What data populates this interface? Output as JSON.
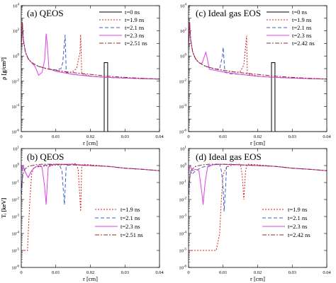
{
  "chart_data": [
    {
      "id": "a",
      "type": "line",
      "title": "(a) QEOS",
      "xlabel": "r [cm]",
      "ylabel": "ρ [g/cm³]",
      "xlim": [
        0,
        0.04
      ],
      "ylim": [
        1e-06,
        10000
      ],
      "y_scale": "log",
      "xticks": [
        "0",
        "0.01",
        "0.02",
        "0.03",
        "0.04"
      ],
      "yticks": [
        {
          "base": "10",
          "exp": "4"
        },
        {
          "base": "10",
          "exp": "2"
        },
        {
          "base": "10",
          "exp": "0"
        },
        {
          "base": "10",
          "exp": "-2"
        },
        {
          "base": "10",
          "exp": "-4"
        },
        {
          "base": "10",
          "exp": "-6"
        }
      ],
      "legend_position": "top-right",
      "series": [
        {
          "name": "t=0 ns",
          "color": "#000000",
          "dash": "solid",
          "x": [
            0,
            0.024,
            0.024,
            0.025,
            0.025,
            0.04
          ],
          "y": [
            1e-06,
            1e-06,
            0.3,
            0.3,
            1e-06,
            1e-06
          ]
        },
        {
          "name": "t=1.9 ns",
          "color": "#d62020",
          "dash": "dotted",
          "x": [
            0,
            0.0003,
            0.0006,
            0.0012,
            0.002,
            0.003,
            0.005,
            0.008,
            0.012,
            0.014,
            0.015,
            0.016,
            0.017,
            0.0172,
            0.0175,
            0.02,
            0.025,
            0.03,
            0.035,
            0.04
          ],
          "y": [
            5,
            500,
            20,
            2,
            0.6,
            0.3,
            0.15,
            0.09,
            0.06,
            0.05,
            0.06,
            0.1,
            2,
            50,
            0.04,
            0.025,
            0.02,
            0.018,
            0.016,
            0.015
          ]
        },
        {
          "name": "t=2.1 ns",
          "color": "#3a5fcd",
          "dash": "dashed",
          "x": [
            0,
            0.0003,
            0.0006,
            0.0012,
            0.002,
            0.003,
            0.005,
            0.008,
            0.01,
            0.0115,
            0.012,
            0.0125,
            0.0127,
            0.013,
            0.015,
            0.02,
            0.025,
            0.03,
            0.035,
            0.04
          ],
          "y": [
            5,
            500,
            20,
            2,
            0.6,
            0.3,
            0.15,
            0.09,
            0.08,
            0.1,
            0.3,
            10,
            50,
            0.05,
            0.035,
            0.025,
            0.02,
            0.018,
            0.016,
            0.015
          ]
        },
        {
          "name": "t=2.3 ns",
          "color": "#e040e0",
          "dash": "solid",
          "x": [
            0,
            0.0003,
            0.0006,
            0.0012,
            0.002,
            0.003,
            0.004,
            0.005,
            0.006,
            0.0068,
            0.0072,
            0.0075,
            0.008,
            0.01,
            0.015,
            0.02,
            0.025,
            0.03,
            0.035,
            0.04
          ],
          "y": [
            5,
            500,
            20,
            2,
            0.6,
            0.3,
            0.15,
            0.03,
            0.05,
            0.5,
            60,
            10,
            0.1,
            0.06,
            0.035,
            0.025,
            0.02,
            0.018,
            0.016,
            0.015
          ]
        },
        {
          "name": "t=2.51 ns",
          "color": "#8b2a2a",
          "dash": "dashdot",
          "x": [
            0,
            0.0003,
            0.0006,
            0.0012,
            0.002,
            0.003,
            0.005,
            0.008,
            0.012,
            0.016,
            0.02,
            0.025,
            0.03,
            0.035,
            0.04
          ],
          "y": [
            5,
            500,
            20,
            2,
            0.6,
            0.3,
            0.15,
            0.09,
            0.06,
            0.045,
            0.035,
            0.025,
            0.02,
            0.017,
            0.015
          ]
        }
      ]
    },
    {
      "id": "c",
      "type": "line",
      "title": "(c) Ideal gas EOS",
      "xlabel": "r [cm]",
      "ylabel": "ρ [g/cm³]",
      "xlim": [
        0,
        0.04
      ],
      "ylim": [
        1e-06,
        10000
      ],
      "y_scale": "log",
      "xticks": [
        "0",
        "0.01",
        "0.02",
        "0.03",
        "0.04"
      ],
      "yticks": [
        {
          "base": "10",
          "exp": "4"
        },
        {
          "base": "10",
          "exp": "2"
        },
        {
          "base": "10",
          "exp": "0"
        },
        {
          "base": "10",
          "exp": "-2"
        },
        {
          "base": "10",
          "exp": "-4"
        },
        {
          "base": "10",
          "exp": "-6"
        }
      ],
      "legend_position": "top-right",
      "series": [
        {
          "name": "t=0 ns",
          "color": "#000000",
          "dash": "solid",
          "x": [
            0,
            0.024,
            0.024,
            0.025,
            0.025,
            0.04
          ],
          "y": [
            1e-06,
            1e-06,
            0.3,
            0.3,
            1e-06,
            1e-06
          ]
        },
        {
          "name": "t=1.9 ns",
          "color": "#d62020",
          "dash": "dotted",
          "x": [
            0,
            0.0003,
            0.0006,
            0.0012,
            0.002,
            0.003,
            0.005,
            0.008,
            0.012,
            0.014,
            0.015,
            0.016,
            0.0165,
            0.0168,
            0.017,
            0.02,
            0.025,
            0.03,
            0.035,
            0.04
          ],
          "y": [
            5,
            500,
            20,
            2,
            0.6,
            0.3,
            0.15,
            0.09,
            0.06,
            0.05,
            0.06,
            0.2,
            5,
            40,
            0.04,
            0.025,
            0.02,
            0.018,
            0.016,
            0.015
          ]
        },
        {
          "name": "t=2.1 ns",
          "color": "#3a5fcd",
          "dash": "dashed",
          "x": [
            0,
            0.0003,
            0.0006,
            0.0012,
            0.002,
            0.003,
            0.005,
            0.008,
            0.009,
            0.0098,
            0.01,
            0.0102,
            0.0105,
            0.012,
            0.015,
            0.02,
            0.025,
            0.03,
            0.035,
            0.04
          ],
          "y": [
            5,
            500,
            20,
            2,
            0.6,
            0.3,
            0.15,
            0.09,
            0.1,
            1,
            5,
            1,
            0.05,
            0.04,
            0.035,
            0.025,
            0.02,
            0.018,
            0.016,
            0.015
          ]
        },
        {
          "name": "t=2.3 ns",
          "color": "#e040e0",
          "dash": "solid",
          "x": [
            0,
            0.0003,
            0.0006,
            0.0012,
            0.002,
            0.003,
            0.0035,
            0.004,
            0.0045,
            0.005,
            0.0055,
            0.006,
            0.008,
            0.01,
            0.015,
            0.02,
            0.025,
            0.03,
            0.035,
            0.04
          ],
          "y": [
            5,
            500,
            20,
            2,
            0.6,
            0.3,
            0.25,
            0.3,
            0.8,
            2,
            0.5,
            0.09,
            0.07,
            0.055,
            0.035,
            0.025,
            0.02,
            0.018,
            0.016,
            0.015
          ]
        },
        {
          "name": "t=2.42 ns",
          "color": "#8b2a2a",
          "dash": "dashdot",
          "x": [
            0,
            0.0003,
            0.0006,
            0.0012,
            0.002,
            0.003,
            0.005,
            0.008,
            0.012,
            0.016,
            0.02,
            0.025,
            0.03,
            0.035,
            0.04
          ],
          "y": [
            5,
            500,
            20,
            2,
            0.6,
            0.3,
            0.15,
            0.09,
            0.06,
            0.045,
            0.035,
            0.025,
            0.02,
            0.017,
            0.015
          ]
        }
      ]
    },
    {
      "id": "b",
      "type": "line",
      "title": "(b) QEOS",
      "xlabel": "r [cm]",
      "ylabel": "Tᵢ [keV]",
      "xlim": [
        0,
        0.04
      ],
      "ylim": [
        1e-06,
        10
      ],
      "y_scale": "log",
      "xticks": [
        "0",
        "0.01",
        "0.02",
        "0.03",
        "0.04"
      ],
      "yticks": [
        {
          "base": "10",
          "exp": "1"
        },
        {
          "base": "10",
          "exp": "0"
        },
        {
          "base": "10",
          "exp": "-1"
        },
        {
          "base": "10",
          "exp": "-2"
        },
        {
          "base": "10",
          "exp": "-3"
        },
        {
          "base": "10",
          "exp": "-4"
        },
        {
          "base": "10",
          "exp": "-5"
        },
        {
          "base": "10",
          "exp": "-6"
        }
      ],
      "legend_position": "center-right",
      "series": [
        {
          "name": "t=1.9 ns",
          "color": "#d62020",
          "dash": "dotted",
          "x": [
            0,
            0.001,
            0.0018,
            0.002,
            0.0025,
            0.003,
            0.0035,
            0.004,
            0.006,
            0.008,
            0.012,
            0.014,
            0.016,
            0.0165,
            0.017,
            0.0172,
            0.0175,
            0.018,
            0.02,
            0.025,
            0.03,
            0.035,
            0.04
          ],
          "y": [
            1e-05,
            1e-05,
            1e-05,
            0.0001,
            0.01,
            0.3,
            0.7,
            0.8,
            0.9,
            1.0,
            1.1,
            1.2,
            1.3,
            0.5,
            0.01,
            0.002,
            1,
            1.2,
            1.1,
            0.9,
            0.7,
            0.6,
            0.5
          ]
        },
        {
          "name": "t=2.1 ns",
          "color": "#3a5fcd",
          "dash": "dashed",
          "x": [
            0,
            0.0005,
            0.001,
            0.0015,
            0.002,
            0.003,
            0.004,
            0.006,
            0.008,
            0.01,
            0.011,
            0.0118,
            0.012,
            0.0125,
            0.013,
            0.015,
            0.02,
            0.025,
            0.03,
            0.035,
            0.04
          ],
          "y": [
            0.01,
            1,
            0.5,
            0.3,
            0.2,
            0.5,
            0.8,
            1.0,
            1.1,
            1.2,
            1.1,
            0.5,
            0.1,
            0.005,
            1.0,
            1.1,
            1.0,
            0.9,
            0.7,
            0.6,
            0.5
          ]
        },
        {
          "name": "t=2.3 ns",
          "color": "#e040e0",
          "dash": "solid",
          "x": [
            0,
            0.0005,
            0.001,
            0.0015,
            0.002,
            0.003,
            0.004,
            0.005,
            0.006,
            0.0068,
            0.0072,
            0.0078,
            0.009,
            0.01,
            0.015,
            0.02,
            0.025,
            0.03,
            0.035,
            0.04
          ],
          "y": [
            0.5,
            1,
            0.5,
            0.3,
            0.2,
            0.5,
            0.8,
            1.0,
            0.8,
            0.05,
            0.005,
            0.8,
            1.1,
            1.2,
            1.2,
            1.0,
            0.9,
            0.7,
            0.6,
            0.5
          ]
        },
        {
          "name": "t=2.51 ns",
          "color": "#8b2a2a",
          "dash": "dashdot",
          "x": [
            0,
            0.0005,
            0.001,
            0.002,
            0.004,
            0.006,
            0.008,
            0.01,
            0.015,
            0.02,
            0.025,
            0.03,
            0.035,
            0.04
          ],
          "y": [
            0.05,
            0.3,
            0.6,
            0.9,
            1.1,
            1.2,
            1.2,
            1.2,
            1.1,
            1.0,
            0.9,
            0.7,
            0.6,
            0.5
          ]
        }
      ]
    },
    {
      "id": "d",
      "type": "line",
      "title": "(d) Ideal gas EOS",
      "xlabel": "r [cm]",
      "ylabel": "Tᵢ [keV]",
      "xlim": [
        0,
        0.04
      ],
      "ylim": [
        1e-06,
        10
      ],
      "y_scale": "log",
      "xticks": [
        "0",
        "0.01",
        "0.02",
        "0.03",
        "0.04"
      ],
      "yticks": [
        {
          "base": "10",
          "exp": "1"
        },
        {
          "base": "10",
          "exp": "0"
        },
        {
          "base": "10",
          "exp": "-1"
        },
        {
          "base": "10",
          "exp": "-2"
        },
        {
          "base": "10",
          "exp": "-3"
        },
        {
          "base": "10",
          "exp": "-4"
        },
        {
          "base": "10",
          "exp": "-5"
        },
        {
          "base": "10",
          "exp": "-6"
        }
      ],
      "legend_position": "center-right",
      "series": [
        {
          "name": "t=1.9 ns",
          "color": "#d62020",
          "dash": "dotted",
          "x": [
            0,
            0.003,
            0.006,
            0.008,
            0.009,
            0.0095,
            0.01,
            0.011,
            0.012,
            0.014,
            0.015,
            0.0155,
            0.016,
            0.0165,
            0.017,
            0.02,
            0.025,
            0.03,
            0.035,
            0.04
          ],
          "y": [
            1e-05,
            1e-05,
            1e-05,
            1e-05,
            0.0001,
            0.01,
            0.3,
            0.8,
            1.0,
            1.2,
            1.2,
            0.3,
            0.01,
            0.5,
            1.2,
            1.1,
            0.9,
            0.7,
            0.6,
            0.5
          ]
        },
        {
          "name": "t=2.1 ns",
          "color": "#3a5fcd",
          "dash": "dashed",
          "x": [
            0,
            0.0005,
            0.001,
            0.002,
            0.004,
            0.006,
            0.008,
            0.009,
            0.0095,
            0.01,
            0.0103,
            0.0107,
            0.011,
            0.0115,
            0.012,
            0.015,
            0.02,
            0.025,
            0.03,
            0.035,
            0.04
          ],
          "y": [
            0.01,
            0.5,
            0.3,
            0.5,
            0.8,
            1.0,
            1.2,
            1.2,
            0.5,
            0.05,
            0.002,
            0.05,
            0.8,
            1.1,
            1.2,
            1.1,
            1.0,
            0.9,
            0.7,
            0.6,
            0.5
          ]
        },
        {
          "name": "t=2.3 ns",
          "color": "#e040e0",
          "dash": "solid",
          "x": [
            0,
            0.0005,
            0.001,
            0.002,
            0.003,
            0.0038,
            0.0042,
            0.0048,
            0.0055,
            0.007,
            0.01,
            0.015,
            0.02,
            0.025,
            0.03,
            0.035,
            0.04
          ],
          "y": [
            0.5,
            1,
            0.5,
            0.6,
            0.5,
            0.03,
            0.005,
            0.1,
            0.8,
            1.1,
            1.2,
            1.1,
            1.0,
            0.9,
            0.7,
            0.6,
            0.5
          ]
        },
        {
          "name": "t=2.42 ns",
          "color": "#8b2a2a",
          "dash": "dashdot",
          "x": [
            0,
            0.0005,
            0.001,
            0.002,
            0.004,
            0.006,
            0.008,
            0.01,
            0.015,
            0.02,
            0.025,
            0.03,
            0.035,
            0.04
          ],
          "y": [
            0.05,
            0.3,
            0.6,
            0.9,
            1.1,
            1.2,
            1.2,
            1.2,
            1.1,
            1.0,
            0.9,
            0.7,
            0.6,
            0.5
          ]
        }
      ]
    }
  ]
}
